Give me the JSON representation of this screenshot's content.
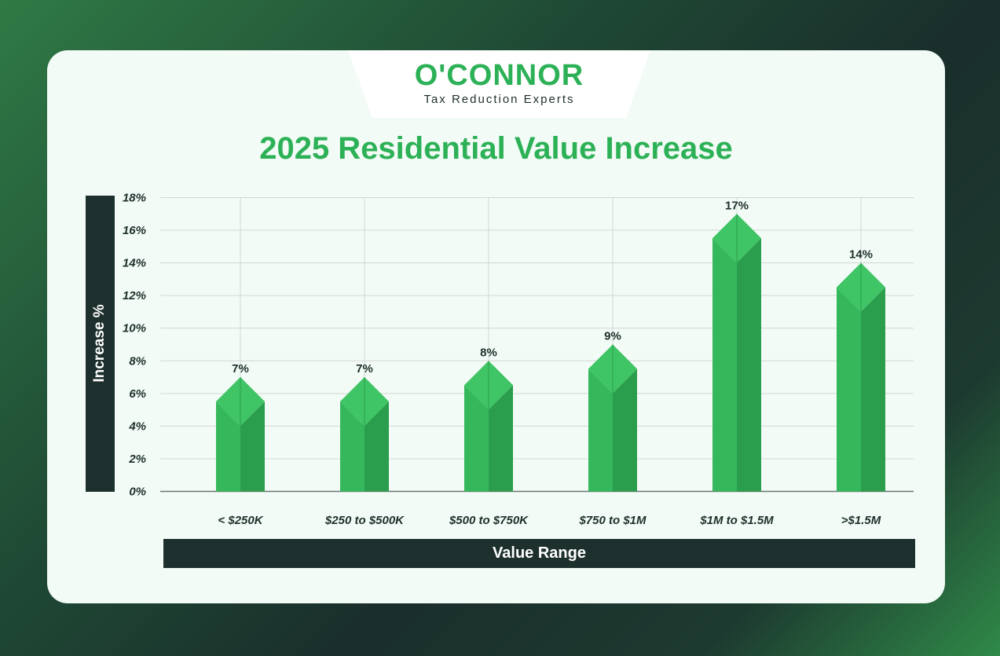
{
  "logo": {
    "name": "O'CONNOR",
    "tagline": "Tax Reduction Experts"
  },
  "chart_data": {
    "type": "bar",
    "title": "2025 Residential Value Increase",
    "xlabel": "Value Range",
    "ylabel": "Increase %",
    "categories": [
      "< $250K",
      "$250 to $500K",
      "$500 to $750K",
      "$750 to $1M",
      "$1M to $1.5M",
      ">$1.5M"
    ],
    "values": [
      7,
      7,
      8,
      9,
      17,
      14
    ],
    "data_labels": [
      "7%",
      "7%",
      "8%",
      "9%",
      "17%",
      "14%"
    ],
    "yticks": [
      "0%",
      "2%",
      "4%",
      "6%",
      "8%",
      "10%",
      "12%",
      "14%",
      "16%",
      "18%"
    ],
    "ylim": [
      0,
      18
    ],
    "grid": true,
    "colors": {
      "bar": "#35b85c",
      "bar_dark": "#2a9e4d",
      "bar_light": "#3fc466",
      "accent_dark": "#1e302d",
      "title": "#2db157"
    }
  }
}
